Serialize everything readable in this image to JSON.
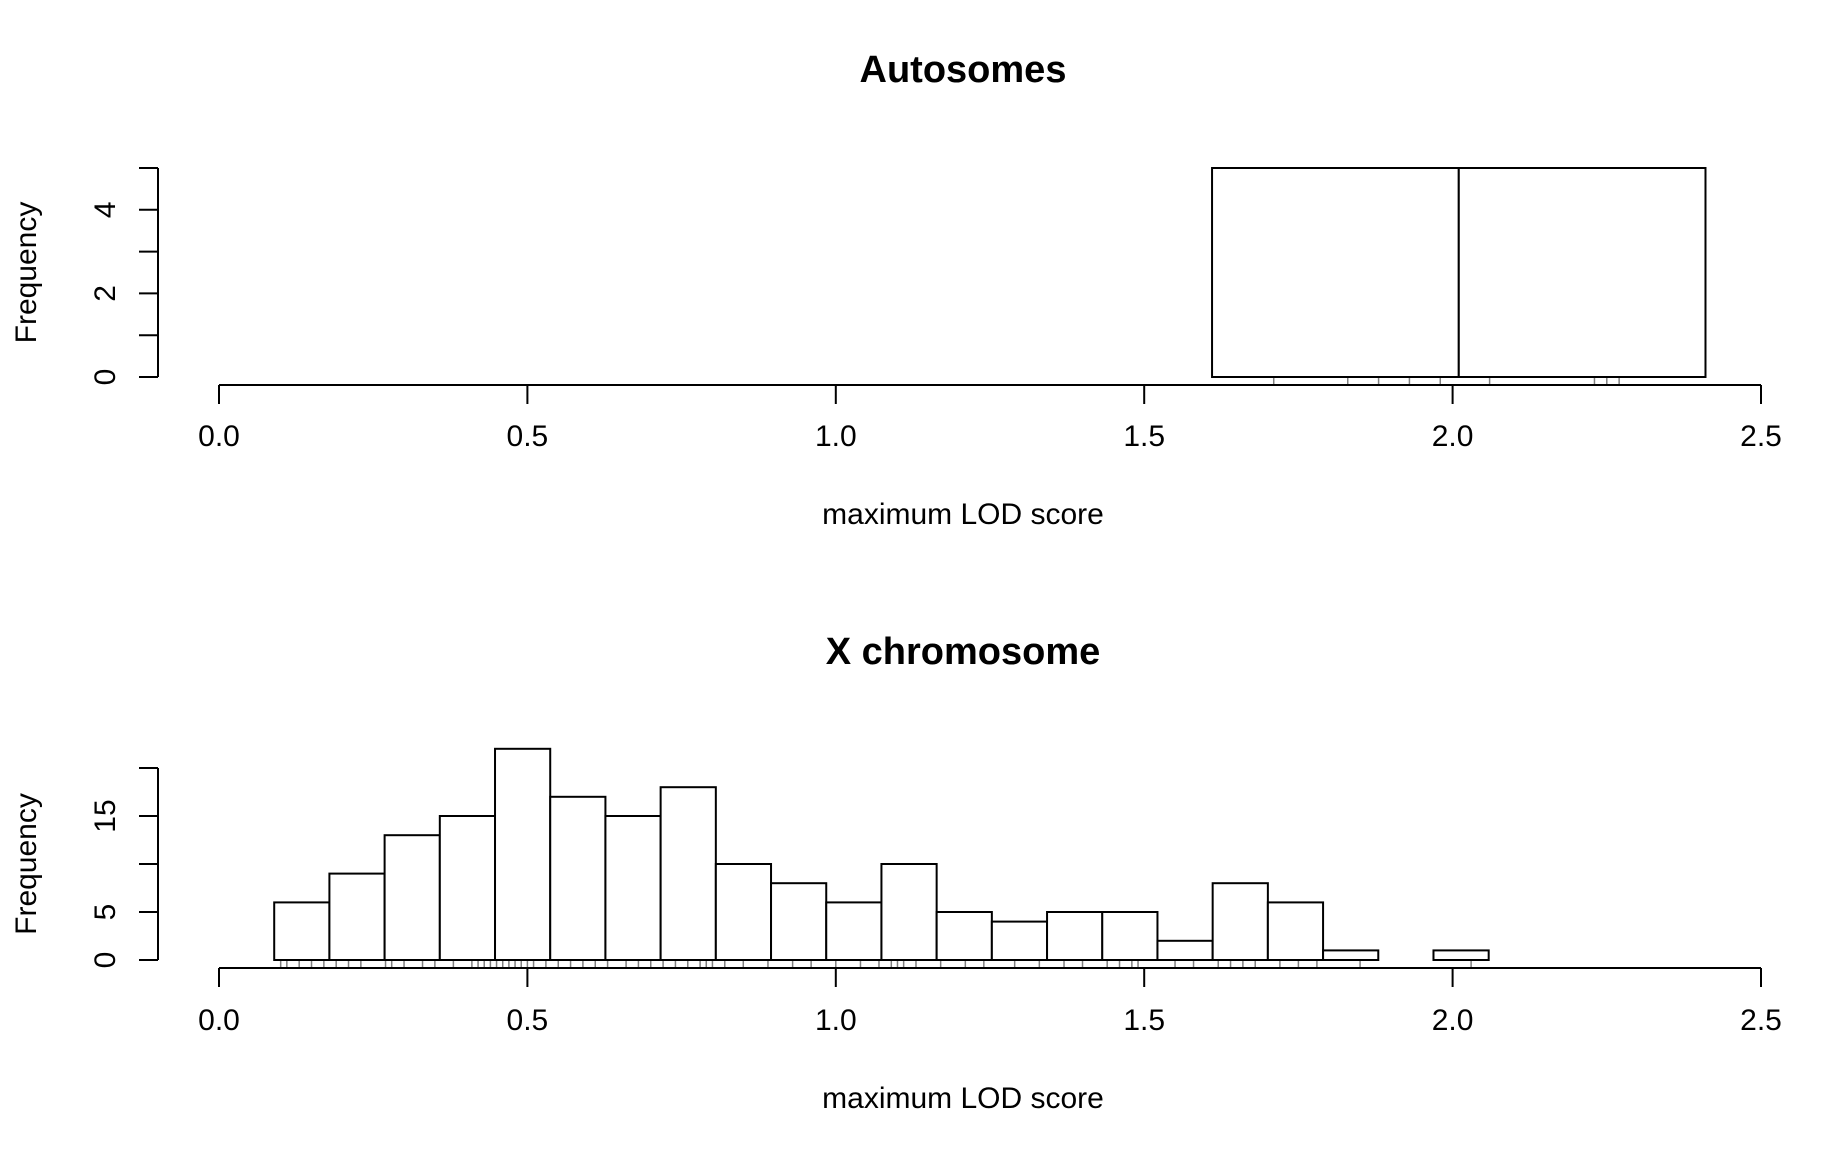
{
  "chart_data": [
    {
      "type": "bar",
      "title": "Autosomes",
      "xlabel": "maximum LOD score",
      "ylabel": "Frequency",
      "xlim": [
        0,
        2.5
      ],
      "ylim": [
        0,
        5
      ],
      "xticks": [
        0,
        0.5,
        1,
        1.5,
        2,
        2.5
      ],
      "xtick_labels": [
        "0.0",
        "0.5",
        "1.0",
        "1.5",
        "2.0",
        "2.5"
      ],
      "yticks": [
        0,
        1,
        2,
        3,
        4,
        5
      ],
      "ytick_labels": [
        "0",
        "",
        "2",
        "",
        "4",
        ""
      ],
      "bins": [
        {
          "x0": 0.0,
          "x1": 1.61,
          "count": 0
        },
        {
          "x0": 1.61,
          "x1": 2.01,
          "count": 5
        },
        {
          "x0": 2.01,
          "x1": 2.41,
          "count": 5
        }
      ],
      "rug": [
        1.71,
        1.83,
        1.88,
        1.93,
        1.98,
        2.06,
        2.23,
        2.25,
        2.27
      ],
      "grid": false,
      "legend": "none"
    },
    {
      "type": "bar",
      "title": "X chromosome",
      "xlabel": "maximum LOD score",
      "ylabel": "Frequency",
      "xlim": [
        0,
        2.5
      ],
      "ylim": [
        0,
        20
      ],
      "xticks": [
        0,
        0.5,
        1,
        1.5,
        2,
        2.5
      ],
      "xtick_labels": [
        "0.0",
        "0.5",
        "1.0",
        "1.5",
        "2.0",
        "2.5"
      ],
      "yticks": [
        0,
        5,
        10,
        15,
        20
      ],
      "ytick_labels": [
        "0",
        "5",
        "",
        "15",
        ""
      ],
      "bin_start": 0.0,
      "bin_width": 0.0895,
      "counts": [
        0,
        6,
        9,
        13,
        15,
        22,
        17,
        15,
        18,
        10,
        8,
        6,
        10,
        5,
        4,
        5,
        5,
        2,
        8,
        6,
        1,
        0,
        1,
        0,
        0,
        0,
        0
      ],
      "rug": [
        0.1,
        0.11,
        0.13,
        0.15,
        0.17,
        0.19,
        0.21,
        0.23,
        0.27,
        0.28,
        0.3,
        0.33,
        0.35,
        0.38,
        0.41,
        0.42,
        0.43,
        0.44,
        0.45,
        0.46,
        0.47,
        0.48,
        0.49,
        0.5,
        0.51,
        0.53,
        0.55,
        0.57,
        0.59,
        0.61,
        0.63,
        0.66,
        0.68,
        0.7,
        0.72,
        0.74,
        0.76,
        0.78,
        0.79,
        0.8,
        0.82,
        0.85,
        0.89,
        0.93,
        0.96,
        1.0,
        1.04,
        1.07,
        1.09,
        1.1,
        1.11,
        1.13,
        1.17,
        1.21,
        1.24,
        1.29,
        1.33,
        1.37,
        1.4,
        1.44,
        1.46,
        1.48,
        1.49,
        1.55,
        1.58,
        1.62,
        1.64,
        1.66,
        1.68,
        1.72,
        1.75,
        1.78,
        1.85,
        2.03
      ],
      "grid": false,
      "legend": "none"
    }
  ]
}
